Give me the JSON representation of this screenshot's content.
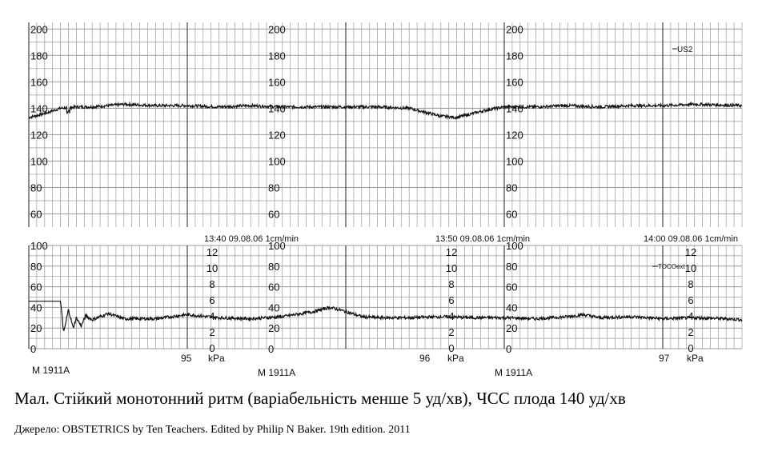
{
  "chart_data": [
    {
      "type": "line",
      "panel": "fetal-heart-rate",
      "ylim": [
        50,
        205
      ],
      "ytick_labels": [
        "200",
        "180",
        "160",
        "140",
        "120",
        "100",
        "80",
        "60"
      ],
      "ytick_values": [
        200,
        180,
        160,
        140,
        120,
        100,
        80,
        60
      ],
      "grid": true,
      "series": [
        {
          "name": "US2",
          "x_minutes": [
            0,
            1,
            2,
            3,
            4,
            5,
            6,
            8,
            10,
            12,
            14,
            16,
            18,
            20,
            22,
            24,
            25,
            26,
            27,
            28,
            29,
            30,
            32,
            34,
            36,
            38,
            40,
            42,
            45
          ],
          "values": [
            133,
            136,
            140,
            141,
            141,
            142,
            143,
            142,
            142,
            141,
            142,
            141,
            141,
            141,
            141,
            140,
            137,
            134,
            133,
            136,
            139,
            141,
            141,
            142,
            141,
            142,
            142,
            143,
            142
          ]
        }
      ],
      "legend": "top-right"
    },
    {
      "type": "line",
      "panel": "uterine-activity",
      "ylim": [
        0,
        100
      ],
      "ytick_labels": [
        "100",
        "80",
        "60",
        "40",
        "20",
        "0"
      ],
      "ytick_values": [
        100,
        80,
        60,
        40,
        20,
        0
      ],
      "kpa_labels": [
        "12",
        "10",
        "8",
        "6",
        "4",
        "2",
        "0"
      ],
      "grid": true,
      "series": [
        {
          "name": "TOCOext",
          "x_minutes": [
            0,
            2,
            2.2,
            2.5,
            2.8,
            3,
            3.3,
            3.6,
            4,
            5,
            6,
            8,
            10,
            12,
            14,
            16,
            18,
            19,
            20,
            21,
            22,
            24,
            26,
            28,
            30,
            32,
            34,
            35,
            36,
            38,
            40,
            42,
            44,
            45
          ],
          "values": [
            46,
            46,
            15,
            38,
            20,
            30,
            22,
            32,
            28,
            34,
            29,
            29,
            33,
            30,
            29,
            31,
            36,
            40,
            36,
            31,
            30,
            30,
            31,
            30,
            30,
            29,
            31,
            33,
            30,
            31,
            29,
            30,
            29,
            28
          ]
        }
      ],
      "legend": "top-right"
    }
  ],
  "chart_text": {
    "legend_us2": "US2",
    "legend_toco": "TOCOext",
    "kpa_unit": "kPa",
    "timestamps": [
      "13:40 09.08.06 1cm/min",
      "13:50 09.08.06 1cm/min",
      "14:00 09.08.06 1cm/min"
    ],
    "page_numbers": [
      "95",
      "96",
      "97"
    ],
    "monitor_labels": [
      "M 1911A",
      "M 1911A",
      "M 1911A"
    ]
  },
  "caption": "Мал. Стійкий монотонний ритм (варіабельність менше 5 уд/хв), ЧСС плода 140 уд/хв",
  "source": "Джерело: OBSTETRICS by Ten Teachers. Edited by Philip N Baker. 19th edition. 2011",
  "colors": {
    "grid": "#9a9a9a",
    "trace": "#111111",
    "background": "#ffffff"
  }
}
